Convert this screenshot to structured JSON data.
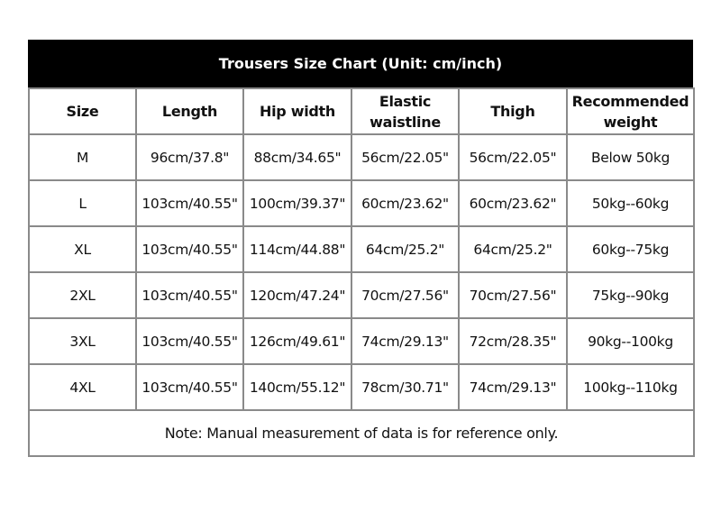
{
  "title": "Trousers Size Chart (Unit: cm/inch)",
  "headers": [
    "Size",
    "Length",
    "Hip width",
    "Elastic waistline",
    "Thigh",
    "Recommended weight"
  ],
  "rows": [
    [
      "M",
      "96cm/37.8\"",
      "88cm/34.65\"",
      "56cm/22.05\"",
      "56cm/22.05\"",
      "Below 50kg"
    ],
    [
      "L",
      "103cm/40.55\"",
      "100cm/39.37\"",
      "60cm/23.62\"",
      "60cm/23.62\"",
      "50kg--60kg"
    ],
    [
      "XL",
      "103cm/40.55\"",
      "114cm/44.88\"",
      "64cm/25.2\"",
      "64cm/25.2\"",
      "60kg--75kg"
    ],
    [
      "2XL",
      "103cm/40.55\"",
      "120cm/47.24\"",
      "70cm/27.56\"",
      "70cm/27.56\"",
      "75kg--90kg"
    ],
    [
      "3XL",
      "103cm/40.55\"",
      "126cm/49.61\"",
      "74cm/29.13\"",
      "72cm/28.35\"",
      "90kg--100kg"
    ],
    [
      "4XL",
      "103cm/40.55\"",
      "140cm/55.12\"",
      "78cm/30.71\"",
      "74cm/29.13\"",
      "100kg--110kg"
    ]
  ],
  "note": "Note: Manual measurement of data is for reference only."
}
